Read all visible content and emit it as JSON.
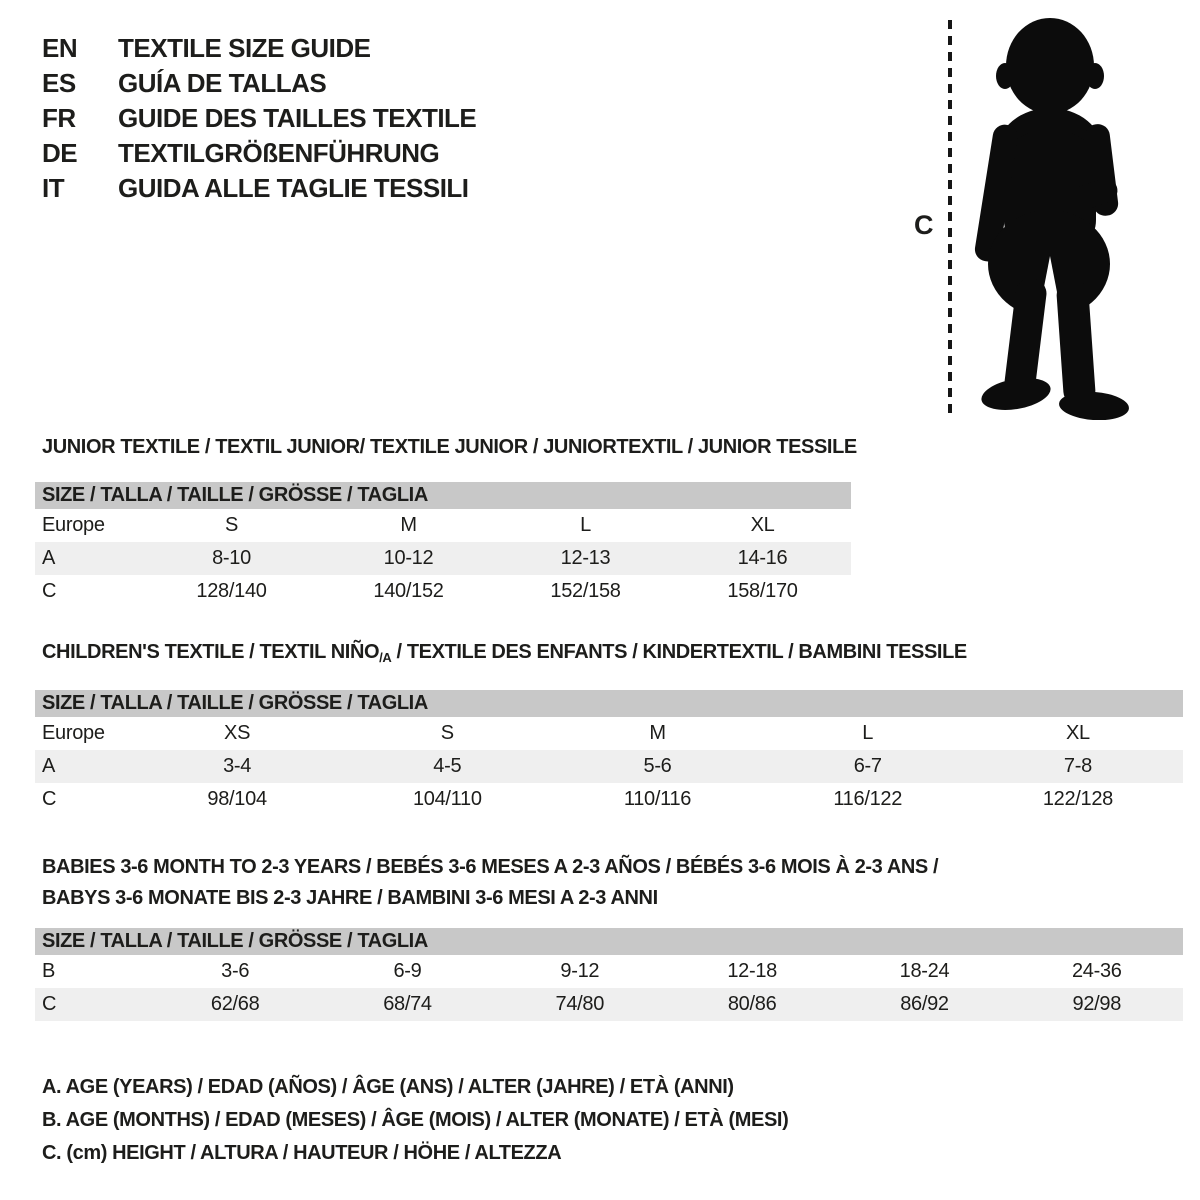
{
  "colors": {
    "background": "#ffffff",
    "text": "#1d1d1b",
    "band_gray": "#c8c8c8",
    "row_shaded": "#efefef",
    "silhouette": "#0c0c0c"
  },
  "header": {
    "languages": [
      {
        "code": "EN",
        "label": "TEXTILE SIZE GUIDE"
      },
      {
        "code": "ES",
        "label": "GUÍA DE TALLAS"
      },
      {
        "code": "FR",
        "label": "GUIDE DES TAILLES TEXTILE"
      },
      {
        "code": "DE",
        "label": "TEXTILGRÖßENFÜHRUNG"
      },
      {
        "code": "IT",
        "label": "GUIDA ALLE TAGLIE TESSILI"
      }
    ]
  },
  "figure": {
    "measure_label": "C",
    "silhouette_name": "toddler-silhouette"
  },
  "tables": [
    {
      "id": "junior",
      "title": "JUNIOR TEXTILE / TEXTIL JUNIOR/ TEXTILE JUNIOR / JUNIORTEXTIL / JUNIOR TESSILE",
      "size_header": "SIZE / TALLA / TAILLE / GRÖSSE / TAGLIA",
      "rows": [
        {
          "label": "Europe",
          "shaded": false,
          "values": [
            "S",
            "M",
            "L",
            "XL"
          ]
        },
        {
          "label": "A",
          "shaded": true,
          "values": [
            "8-10",
            "10-12",
            "12-13",
            "14-16"
          ]
        },
        {
          "label": "C",
          "shaded": false,
          "values": [
            "128/140",
            "140/152",
            "152/158",
            "158/170"
          ]
        }
      ]
    },
    {
      "id": "children",
      "title_prefix": "CHILDREN'S TEXTILE / TEXTIL NIÑO",
      "title_sub": "/A",
      "title_suffix": " / TEXTILE DES ENFANTS / KINDERTEXTIL / BAMBINI TESSILE",
      "size_header": "SIZE / TALLA / TAILLE / GRÖSSE / TAGLIA",
      "rows": [
        {
          "label": "Europe",
          "shaded": false,
          "values": [
            "XS",
            "S",
            "M",
            "L",
            "XL"
          ]
        },
        {
          "label": "A",
          "shaded": true,
          "values": [
            "3-4",
            "4-5",
            "5-6",
            "6-7",
            "7-8"
          ]
        },
        {
          "label": "C",
          "shaded": false,
          "values": [
            "98/104",
            "104/110",
            "110/116",
            "116/122",
            "122/128"
          ]
        }
      ]
    },
    {
      "id": "babies",
      "title_line1": "BABIES 3-6 MONTH TO 2-3 YEARS / BEBÉS 3-6 MESES A 2-3 AÑOS / BÉBÉS 3-6 MOIS À 2-3 ANS /",
      "title_line2": "BABYS 3-6 MONATE BIS 2-3 JAHRE / BAMBINI 3-6 MESI A 2-3 ANNI",
      "size_header": "SIZE / TALLA / TAILLE / GRÖSSE / TAGLIA",
      "rows": [
        {
          "label": "B",
          "shaded": false,
          "values": [
            "3-6",
            "6-9",
            "9-12",
            "12-18",
            "18-24",
            "24-36"
          ]
        },
        {
          "label": "C",
          "shaded": true,
          "values": [
            "62/68",
            "68/74",
            "74/80",
            "80/86",
            "86/92",
            "92/98"
          ]
        }
      ]
    }
  ],
  "legend": {
    "lines": [
      "A. AGE (YEARS) / EDAD (AÑOS) / ÂGE (ANS) / ALTER (JAHRE) / ETÀ (ANNI)",
      "B. AGE (MONTHS) / EDAD (MESES) / ÂGE (MOIS) / ALTER (MONATE) / ETÀ (MESI)",
      "C. (cm) HEIGHT / ALTURA / HAUTEUR / HÖHE / ALTEZZA"
    ]
  }
}
